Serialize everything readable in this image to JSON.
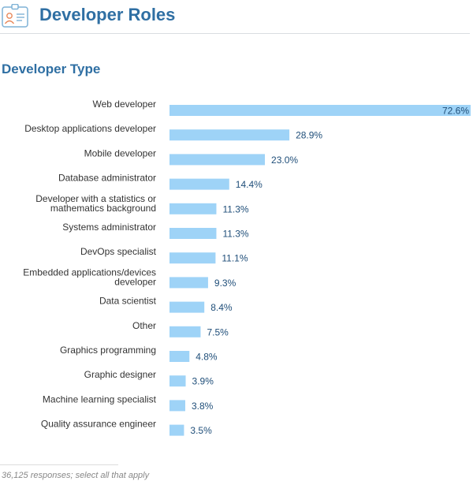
{
  "header": {
    "title": "Developer Roles",
    "icon": "id-badge-icon"
  },
  "section": {
    "title": "Developer Type"
  },
  "chart_data": {
    "type": "bar",
    "orientation": "horizontal",
    "title": "Developer Type",
    "categories": [
      "Web developer",
      "Desktop applications developer",
      "Mobile developer",
      "Database administrator",
      "Developer with a statistics or mathematics background",
      "Systems administrator",
      "DevOps specialist",
      "Embedded applications/devices developer",
      "Data scientist",
      "Other",
      "Graphics programming",
      "Graphic designer",
      "Machine learning specialist",
      "Quality assurance engineer"
    ],
    "values": [
      72.6,
      28.9,
      23.0,
      14.4,
      11.3,
      11.3,
      11.1,
      9.3,
      8.4,
      7.5,
      4.8,
      3.9,
      3.8,
      3.5
    ],
    "value_labels": [
      "72.6%",
      "28.9%",
      "23.0%",
      "14.4%",
      "11.3%",
      "11.3%",
      "11.1%",
      "9.3%",
      "8.4%",
      "7.5%",
      "4.8%",
      "3.9%",
      "3.8%",
      "3.5%"
    ],
    "unit": "%",
    "xlim": [
      0,
      72.6
    ],
    "xlabel": "",
    "ylabel": "",
    "grid": false,
    "bar_color": "#9ed3f7",
    "value_label_color": "#1f4e79"
  },
  "footnote": "36,125 responses; select all that apply"
}
